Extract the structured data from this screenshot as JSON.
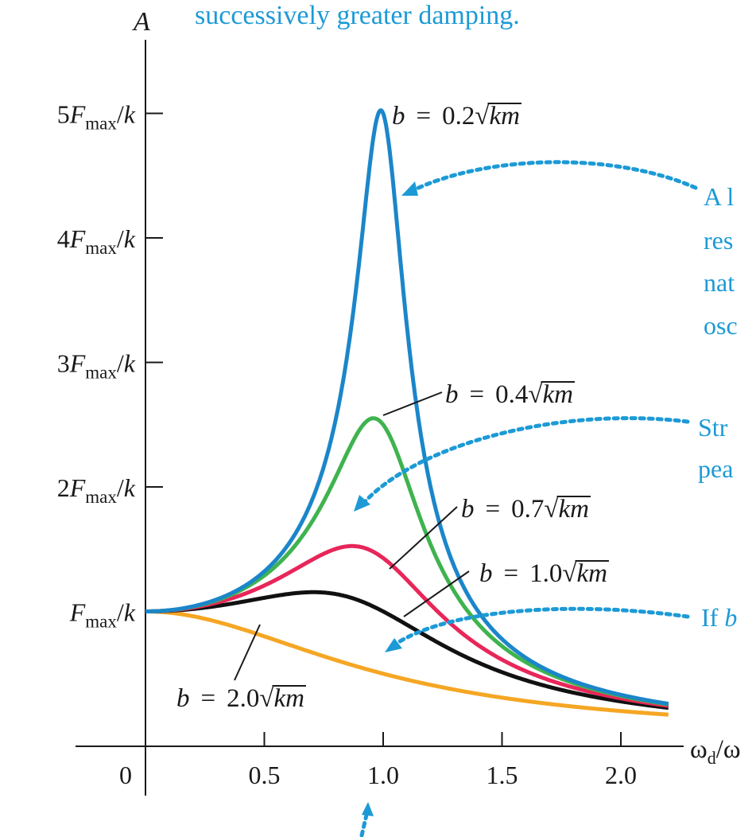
{
  "chart_data": {
    "type": "line",
    "title": "successively greater damping.",
    "xlabel": "ω_d/ω",
    "ylabel": "A",
    "xlim": [
      0,
      2.25
    ],
    "ylim": [
      0,
      5.2
    ],
    "grid": false,
    "x_ticks": [
      "0",
      "0.5",
      "1.0",
      "1.5",
      "2.0"
    ],
    "y_ticks": [
      "F_max/k",
      "2F_max/k",
      "3F_max/k",
      "4F_max/k",
      "5F_max/k"
    ],
    "series": [
      {
        "name": "b = 0.2√km",
        "damping": 0.2,
        "color": "#1b86c9"
      },
      {
        "name": "b = 0.4√km",
        "damping": 0.4,
        "color": "#3fb34f"
      },
      {
        "name": "b = 0.7√km",
        "damping": 0.7,
        "color": "#e8265a"
      },
      {
        "name": "b = 1.0√km",
        "damping": 1.0,
        "color": "#111111"
      },
      {
        "name": "b = 2.0√km",
        "damping": 2.0,
        "color": "#f5a623"
      }
    ],
    "annotations": [
      "A l",
      "res",
      "nat",
      "osc",
      "Str",
      "pea",
      "If b"
    ]
  }
}
